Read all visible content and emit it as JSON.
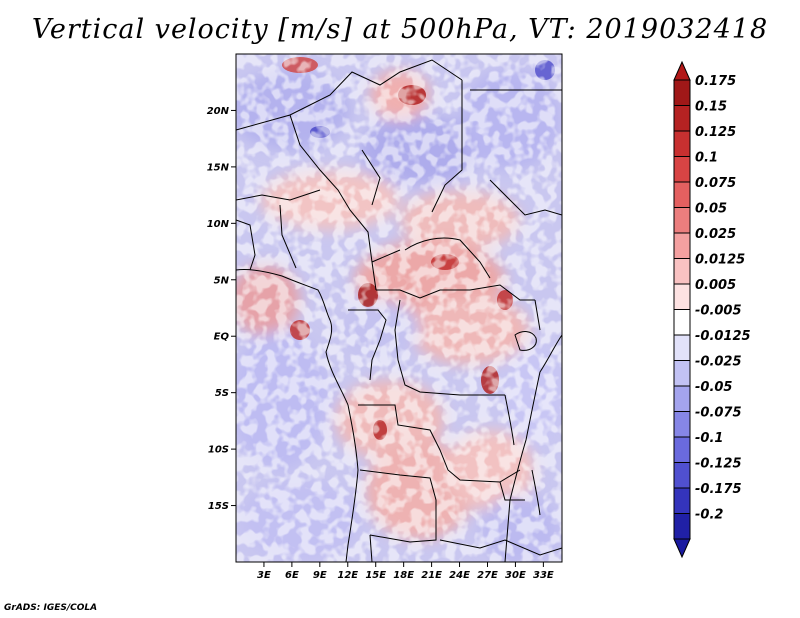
{
  "title": "Vertical velocity [m/s] at 500hPa, VT: 2019032418",
  "credit": "GrADS: IGES/COLA",
  "map": {
    "lat_range": [
      -20,
      25
    ],
    "lon_range": [
      0,
      35
    ],
    "lat_ticks": [
      {
        "value": 20,
        "label": "20N"
      },
      {
        "value": 15,
        "label": "15N"
      },
      {
        "value": 10,
        "label": "10N"
      },
      {
        "value": 5,
        "label": "5N"
      },
      {
        "value": 0,
        "label": "EQ"
      },
      {
        "value": -5,
        "label": "5S"
      },
      {
        "value": -10,
        "label": "10S"
      },
      {
        "value": -15,
        "label": "15S"
      }
    ],
    "lon_ticks": [
      {
        "value": 3,
        "label": "3E"
      },
      {
        "value": 6,
        "label": "6E"
      },
      {
        "value": 9,
        "label": "9E"
      },
      {
        "value": 12,
        "label": "12E"
      },
      {
        "value": 15,
        "label": "15E"
      },
      {
        "value": 18,
        "label": "18E"
      },
      {
        "value": 21,
        "label": "21E"
      },
      {
        "value": 24,
        "label": "24E"
      },
      {
        "value": 27,
        "label": "27E"
      },
      {
        "value": 30,
        "label": "30E"
      },
      {
        "value": 33,
        "label": "33E"
      }
    ]
  },
  "colorbar": [
    {
      "label": "0.175",
      "color": "#a01818"
    },
    {
      "label": "0.15",
      "color": "#b52222"
    },
    {
      "label": "0.125",
      "color": "#c83030"
    },
    {
      "label": "0.1",
      "color": "#d84444"
    },
    {
      "label": "0.075",
      "color": "#e46060"
    },
    {
      "label": "0.05",
      "color": "#ec7e7e"
    },
    {
      "label": "0.025",
      "color": "#f4a0a0"
    },
    {
      "label": "0.0125",
      "color": "#f9c2c2"
    },
    {
      "label": "0.005",
      "color": "#fde2e2"
    },
    {
      "label": "-0.005",
      "color": "#ffffff"
    },
    {
      "label": "-0.0125",
      "color": "#e2e2fa"
    },
    {
      "label": "-0.025",
      "color": "#c2c2f4"
    },
    {
      "label": "-0.05",
      "color": "#a4a4ee"
    },
    {
      "label": "-0.075",
      "color": "#8686e6"
    },
    {
      "label": "-0.1",
      "color": "#6a6ade"
    },
    {
      "label": "-0.125",
      "color": "#5050d0"
    },
    {
      "label": "-0.175",
      "color": "#3434bc"
    },
    {
      "label": "-0.2",
      "color": "#2020a6"
    }
  ],
  "colorbar_ends": {
    "top": "#b21818",
    "bottom": "#1a1aa0"
  }
}
